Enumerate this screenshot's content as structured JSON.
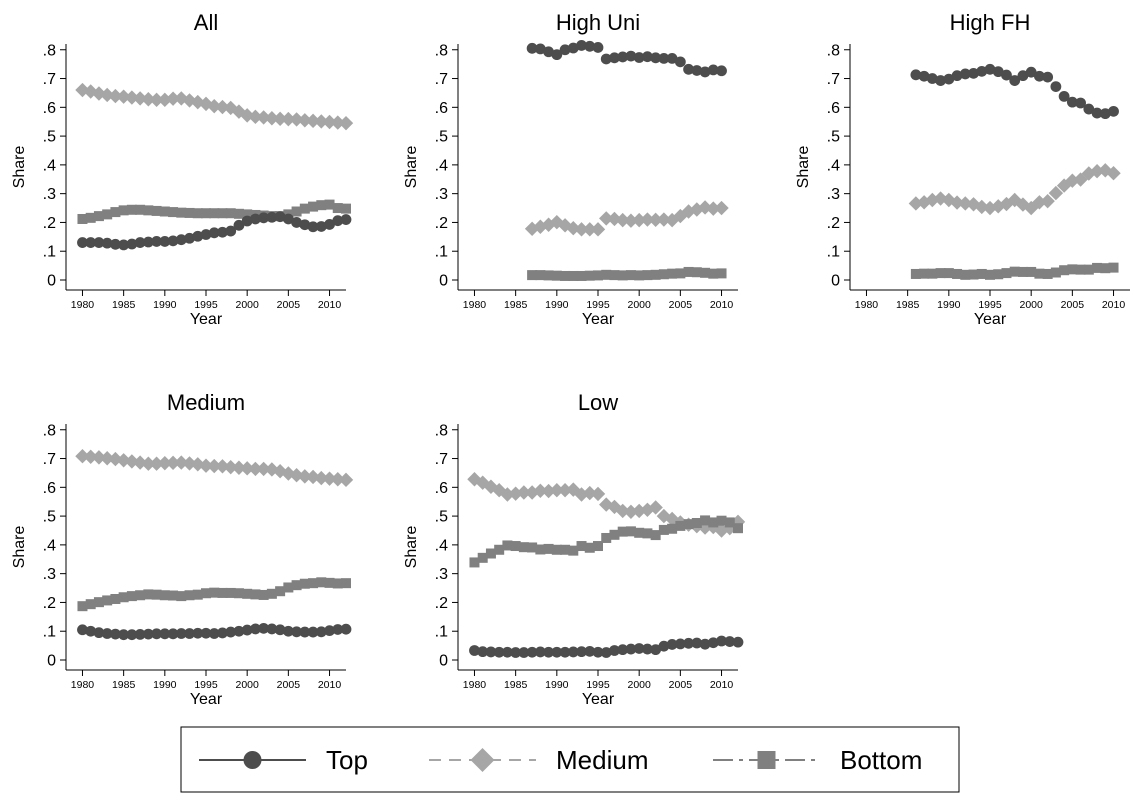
{
  "chart_data": {
    "type": "scatter",
    "xlabel": "Year",
    "ylabel": "Share",
    "xlim": [
      1978,
      2012
    ],
    "ylim": [
      0,
      0.82
    ],
    "x_ticks": [
      "1980",
      "1985",
      "1990",
      "1995",
      "2000",
      "2005",
      "2010"
    ],
    "y_ticks": [
      "0",
      ".1",
      ".2",
      ".3",
      ".4",
      ".5",
      ".6",
      ".7",
      ".8"
    ],
    "legend": {
      "placement": "bottom",
      "entries": [
        {
          "label": "Top",
          "marker": "circle",
          "line": "solid"
        },
        {
          "label": "Medium",
          "marker": "diamond",
          "line": "dashed"
        },
        {
          "label": "Bottom",
          "marker": "square",
          "line": "dashdot"
        }
      ]
    },
    "colors": {
      "top": "#4d4d4d",
      "medium": "#a6a6a6",
      "bottom": "#808080"
    },
    "panels": [
      {
        "title": "All",
        "x_start": 1980,
        "series": [
          {
            "name": "Top",
            "values": [
              0.13,
              0.13,
              0.13,
              0.128,
              0.124,
              0.122,
              0.125,
              0.13,
              0.132,
              0.134,
              0.134,
              0.136,
              0.14,
              0.145,
              0.152,
              0.158,
              0.164,
              0.166,
              0.17,
              0.19,
              0.205,
              0.212,
              0.216,
              0.218,
              0.22,
              0.212,
              0.2,
              0.192,
              0.185,
              0.186,
              0.193,
              0.206,
              0.21
            ]
          },
          {
            "name": "Medium",
            "values": [
              0.66,
              0.655,
              0.648,
              0.643,
              0.639,
              0.637,
              0.634,
              0.631,
              0.628,
              0.626,
              0.626,
              0.63,
              0.631,
              0.624,
              0.618,
              0.612,
              0.604,
              0.601,
              0.598,
              0.585,
              0.572,
              0.567,
              0.565,
              0.562,
              0.56,
              0.559,
              0.558,
              0.555,
              0.553,
              0.551,
              0.549,
              0.547,
              0.545
            ]
          },
          {
            "name": "Bottom",
            "values": [
              0.212,
              0.216,
              0.222,
              0.228,
              0.236,
              0.242,
              0.244,
              0.244,
              0.242,
              0.24,
              0.238,
              0.236,
              0.234,
              0.233,
              0.232,
              0.232,
              0.232,
              0.232,
              0.232,
              0.23,
              0.228,
              0.226,
              0.224,
              0.222,
              0.222,
              0.228,
              0.238,
              0.248,
              0.255,
              0.26,
              0.262,
              0.25,
              0.248
            ]
          }
        ]
      },
      {
        "title": "High Uni",
        "x_start": 1987,
        "series": [
          {
            "name": "Top",
            "values": [
              0.805,
              0.803,
              0.793,
              0.783,
              0.8,
              0.806,
              0.815,
              0.812,
              0.808,
              0.768,
              0.772,
              0.775,
              0.778,
              0.773,
              0.776,
              0.772,
              0.77,
              0.77,
              0.758,
              0.732,
              0.728,
              0.723,
              0.73,
              0.727
            ]
          },
          {
            "name": "Medium",
            "values": [
              0.178,
              0.185,
              0.192,
              0.201,
              0.19,
              0.18,
              0.176,
              0.176,
              0.176,
              0.214,
              0.212,
              0.208,
              0.206,
              0.208,
              0.21,
              0.209,
              0.21,
              0.208,
              0.222,
              0.238,
              0.245,
              0.252,
              0.248,
              0.25
            ]
          },
          {
            "name": "Bottom",
            "values": [
              0.017,
              0.017,
              0.016,
              0.015,
              0.014,
              0.014,
              0.014,
              0.015,
              0.016,
              0.018,
              0.017,
              0.016,
              0.017,
              0.016,
              0.017,
              0.018,
              0.02,
              0.022,
              0.023,
              0.028,
              0.027,
              0.025,
              0.022,
              0.023
            ]
          }
        ]
      },
      {
        "title": "High FH",
        "x_start": 1986,
        "series": [
          {
            "name": "Top",
            "values": [
              0.713,
              0.708,
              0.7,
              0.693,
              0.698,
              0.71,
              0.716,
              0.718,
              0.725,
              0.732,
              0.724,
              0.712,
              0.693,
              0.71,
              0.722,
              0.708,
              0.705,
              0.672,
              0.638,
              0.618,
              0.615,
              0.594,
              0.58,
              0.578,
              0.586
            ]
          },
          {
            "name": "Medium",
            "values": [
              0.266,
              0.27,
              0.278,
              0.283,
              0.278,
              0.269,
              0.266,
              0.263,
              0.254,
              0.25,
              0.256,
              0.264,
              0.278,
              0.262,
              0.25,
              0.27,
              0.274,
              0.302,
              0.328,
              0.345,
              0.349,
              0.37,
              0.378,
              0.381,
              0.371
            ]
          },
          {
            "name": "Bottom",
            "values": [
              0.021,
              0.022,
              0.022,
              0.024,
              0.024,
              0.021,
              0.018,
              0.019,
              0.021,
              0.018,
              0.02,
              0.024,
              0.029,
              0.028,
              0.028,
              0.022,
              0.021,
              0.026,
              0.034,
              0.037,
              0.036,
              0.036,
              0.042,
              0.041,
              0.043
            ]
          }
        ]
      },
      {
        "title": "Medium",
        "x_start": 1980,
        "series": [
          {
            "name": "Top",
            "values": [
              0.105,
              0.1,
              0.095,
              0.092,
              0.09,
              0.088,
              0.088,
              0.089,
              0.09,
              0.091,
              0.091,
              0.091,
              0.092,
              0.092,
              0.093,
              0.093,
              0.092,
              0.094,
              0.097,
              0.1,
              0.104,
              0.108,
              0.11,
              0.108,
              0.105,
              0.1,
              0.098,
              0.097,
              0.097,
              0.098,
              0.102,
              0.106,
              0.107
            ]
          },
          {
            "name": "Medium",
            "values": [
              0.708,
              0.706,
              0.704,
              0.701,
              0.698,
              0.694,
              0.69,
              0.686,
              0.682,
              0.682,
              0.684,
              0.685,
              0.686,
              0.683,
              0.68,
              0.675,
              0.674,
              0.673,
              0.67,
              0.668,
              0.666,
              0.664,
              0.664,
              0.662,
              0.656,
              0.648,
              0.642,
              0.638,
              0.636,
              0.632,
              0.63,
              0.628,
              0.626
            ]
          },
          {
            "name": "Bottom",
            "values": [
              0.187,
              0.194,
              0.201,
              0.207,
              0.212,
              0.218,
              0.222,
              0.225,
              0.228,
              0.227,
              0.225,
              0.224,
              0.222,
              0.225,
              0.227,
              0.232,
              0.234,
              0.233,
              0.233,
              0.232,
              0.23,
              0.228,
              0.226,
              0.23,
              0.239,
              0.252,
              0.26,
              0.265,
              0.267,
              0.27,
              0.268,
              0.266,
              0.267
            ]
          }
        ]
      },
      {
        "title": "Low",
        "x_start": 1980,
        "series": [
          {
            "name": "Top",
            "values": [
              0.033,
              0.029,
              0.028,
              0.027,
              0.027,
              0.026,
              0.026,
              0.027,
              0.028,
              0.027,
              0.027,
              0.027,
              0.028,
              0.029,
              0.03,
              0.027,
              0.026,
              0.033,
              0.036,
              0.038,
              0.04,
              0.038,
              0.036,
              0.048,
              0.054,
              0.056,
              0.058,
              0.059,
              0.055,
              0.06,
              0.066,
              0.064,
              0.062
            ]
          },
          {
            "name": "Medium",
            "values": [
              0.628,
              0.616,
              0.602,
              0.59,
              0.575,
              0.578,
              0.582,
              0.582,
              0.588,
              0.587,
              0.59,
              0.59,
              0.592,
              0.575,
              0.58,
              0.577,
              0.54,
              0.532,
              0.518,
              0.515,
              0.518,
              0.522,
              0.53,
              0.5,
              0.49,
              0.478,
              0.47,
              0.465,
              0.46,
              0.462,
              0.45,
              0.458,
              0.48
            ]
          },
          {
            "name": "Bottom",
            "values": [
              0.339,
              0.355,
              0.37,
              0.383,
              0.398,
              0.396,
              0.392,
              0.391,
              0.384,
              0.386,
              0.383,
              0.383,
              0.38,
              0.396,
              0.39,
              0.396,
              0.424,
              0.435,
              0.446,
              0.447,
              0.442,
              0.44,
              0.434,
              0.452,
              0.456,
              0.466,
              0.472,
              0.476,
              0.485,
              0.478,
              0.484,
              0.478,
              0.458
            ]
          }
        ]
      }
    ]
  }
}
